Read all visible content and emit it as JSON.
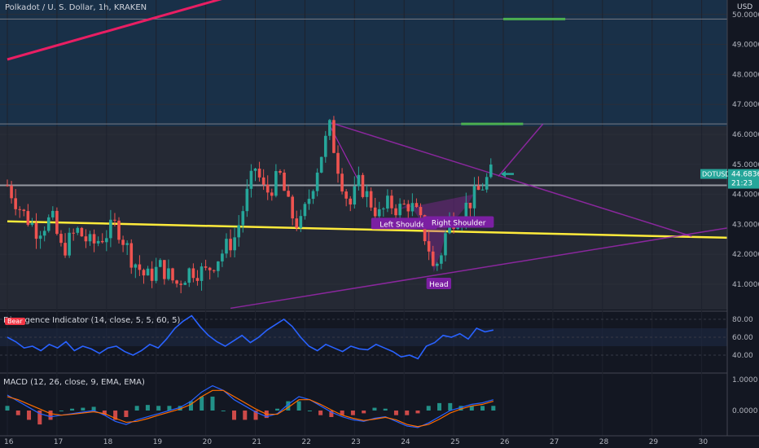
{
  "header": {
    "symbol_title": "Polkadot / U. S. Dollar, 1h, KRAKEN",
    "currency": "USD"
  },
  "price_tag": {
    "ticker": "DOTUSD",
    "price": "44.6836",
    "countdown": "21:23"
  },
  "rsi": {
    "title": "Divergence Indicator (14, close, 5, 5, 60, 5)",
    "badge": "Bear"
  },
  "macd": {
    "title": "MACD (12, 26, close, 9, EMA, EMA)"
  },
  "colors": {
    "background": "#131722",
    "up": "#26a69a",
    "down": "#ef5350",
    "support_line": "#ffeb3b",
    "trend_line": "#e91e63",
    "wedge": "#9c27b0",
    "target": "#4caf50",
    "rsi_line": "#2962ff",
    "arrow": "#26a69a"
  },
  "chart_data": [
    {
      "type": "candlestick",
      "title": "Polkadot / U. S. Dollar, 1h, KRAKEN",
      "ylabel": "USD",
      "ylim": [
        40.2,
        51.4
      ],
      "y_ticks": [
        "50.0000",
        "49.0000",
        "48.0000",
        "47.0000",
        "46.0000",
        "45.0000",
        "44.0000",
        "43.0000",
        "42.0000",
        "41.0000"
      ],
      "x_ticks": [
        "16",
        "17",
        "18",
        "19",
        "20",
        "21",
        "22",
        "23",
        "24",
        "25",
        "26",
        "27",
        "28",
        "29",
        "30"
      ],
      "price_path": [
        [
          16.0,
          44.3
        ],
        [
          16.3,
          43.4
        ],
        [
          16.6,
          42.8
        ],
        [
          16.9,
          43.2
        ],
        [
          17.1,
          42.1
        ],
        [
          17.4,
          42.8
        ],
        [
          17.7,
          42.3
        ],
        [
          18.0,
          42.7
        ],
        [
          18.2,
          43.0
        ],
        [
          18.5,
          41.9
        ],
        [
          18.8,
          41.2
        ],
        [
          19.1,
          41.6
        ],
        [
          19.4,
          41.0
        ],
        [
          19.7,
          41.5
        ],
        [
          20.0,
          41.4
        ],
        [
          20.3,
          42.0
        ],
        [
          20.6,
          42.6
        ],
        [
          20.8,
          43.8
        ],
        [
          21.0,
          44.9
        ],
        [
          21.2,
          44.0
        ],
        [
          21.5,
          44.6
        ],
        [
          21.7,
          43.4
        ],
        [
          21.9,
          42.9
        ],
        [
          22.1,
          44.0
        ],
        [
          22.3,
          45.2
        ],
        [
          22.5,
          46.2
        ],
        [
          22.7,
          44.7
        ],
        [
          22.9,
          43.6
        ],
        [
          23.1,
          44.4
        ],
        [
          23.3,
          43.8
        ],
        [
          23.5,
          43.3
        ],
        [
          23.7,
          43.7
        ],
        [
          23.9,
          43.5
        ],
        [
          24.1,
          43.7
        ],
        [
          24.3,
          43.2
        ],
        [
          24.5,
          42.2
        ],
        [
          24.6,
          41.4
        ],
        [
          24.75,
          42.1
        ],
        [
          24.9,
          43.1
        ],
        [
          25.1,
          43.3
        ],
        [
          25.3,
          43.7
        ],
        [
          25.5,
          44.1
        ],
        [
          25.75,
          44.68
        ]
      ],
      "annotations": [
        {
          "text": "Left Shoulder",
          "x": 24.0,
          "y": 43.0
        },
        {
          "text": "Head",
          "x": 24.7,
          "y": 41.0
        },
        {
          "text": "Right Shoulder",
          "x": 25.1,
          "y": 43.05
        }
      ],
      "levels": [
        {
          "name": "resistance",
          "y": 46.35
        },
        {
          "name": "pivot",
          "y": 44.3
        },
        {
          "name": "top",
          "y": 49.85
        }
      ],
      "targets": [
        {
          "x1": 25.15,
          "x2": 26.4,
          "y": 46.35
        },
        {
          "x1": 26.0,
          "x2": 27.25,
          "y": 49.85
        }
      ],
      "trendlines": [
        {
          "name": "support",
          "p1": [
            16.0,
            43.1
          ],
          "p2": [
            30.6,
            42.55
          ]
        },
        {
          "name": "upper-wedge",
          "p1": [
            22.5,
            46.4
          ],
          "p2": [
            29.8,
            42.6
          ]
        },
        {
          "name": "lower-wedge",
          "p1": [
            20.5,
            40.2
          ],
          "p2": [
            30.6,
            42.9
          ]
        },
        {
          "name": "long-trend",
          "p1": [
            16.0,
            48.5
          ],
          "p2": [
            22.2,
            51.4
          ]
        },
        {
          "name": "projection",
          "p1": [
            25.9,
            44.6
          ],
          "p2": [
            26.8,
            46.35
          ]
        }
      ]
    },
    {
      "type": "line",
      "title": "Divergence Indicator (14, close, 5, 5, 60, 5)",
      "ylim": [
        30,
        90
      ],
      "y_ticks": [
        "80.00",
        "60.00",
        "40.00"
      ],
      "series": [
        {
          "values": [
            60,
            55,
            48,
            50,
            45,
            52,
            48,
            55,
            45,
            50,
            47,
            42,
            48,
            50,
            44,
            40,
            45,
            52,
            48,
            58,
            70,
            78,
            84,
            72,
            62,
            55,
            50,
            56,
            62,
            54,
            60,
            68,
            74,
            80,
            72,
            60,
            50,
            45,
            52,
            48,
            44,
            50,
            47,
            46,
            52,
            48,
            44,
            38,
            40,
            36,
            50,
            54,
            62,
            60,
            64,
            58,
            70,
            66,
            68
          ]
        }
      ]
    },
    {
      "type": "bar",
      "title": "MACD (12, 26, close, 9, EMA, EMA)",
      "ylim": [
        -0.8,
        1.1
      ],
      "y_ticks": [
        "1.0000",
        "0.0000"
      ],
      "series": [
        {
          "name": "macd",
          "values": [
            0.5,
            0.3,
            0.1,
            -0.1,
            -0.2,
            -0.15,
            -0.1,
            -0.05,
            0.0,
            -0.15,
            -0.35,
            -0.45,
            -0.3,
            -0.2,
            -0.1,
            0.0,
            0.1,
            0.3,
            0.6,
            0.8,
            0.65,
            0.35,
            0.15,
            -0.05,
            -0.2,
            -0.1,
            0.2,
            0.45,
            0.35,
            0.15,
            -0.05,
            -0.2,
            -0.3,
            -0.35,
            -0.25,
            -0.2,
            -0.35,
            -0.5,
            -0.55,
            -0.4,
            -0.2,
            0.0,
            0.1,
            0.2,
            0.25,
            0.35
          ]
        },
        {
          "name": "signal",
          "values": [
            0.45,
            0.35,
            0.2,
            0.05,
            -0.1,
            -0.15,
            -0.12,
            -0.08,
            -0.04,
            -0.1,
            -0.25,
            -0.38,
            -0.35,
            -0.26,
            -0.15,
            -0.05,
            0.05,
            0.2,
            0.45,
            0.65,
            0.65,
            0.45,
            0.25,
            0.05,
            -0.12,
            -0.12,
            0.1,
            0.35,
            0.35,
            0.2,
            0.02,
            -0.15,
            -0.25,
            -0.32,
            -0.28,
            -0.22,
            -0.3,
            -0.45,
            -0.52,
            -0.45,
            -0.28,
            -0.08,
            0.05,
            0.15,
            0.2,
            0.3
          ]
        },
        {
          "name": "histogram",
          "values": [
            0.05,
            -0.05,
            -0.1,
            -0.15,
            -0.1,
            0.0,
            0.02,
            0.03,
            0.04,
            -0.05,
            -0.1,
            -0.07,
            0.05,
            0.06,
            0.05,
            0.05,
            0.05,
            0.1,
            0.15,
            0.15,
            0.0,
            -0.1,
            -0.1,
            -0.1,
            -0.08,
            0.02,
            0.1,
            0.1,
            0.0,
            -0.05,
            -0.07,
            -0.05,
            -0.05,
            -0.03,
            0.03,
            0.02,
            -0.05,
            -0.05,
            -0.03,
            0.05,
            0.08,
            0.08,
            0.05,
            0.05,
            0.05,
            0.05
          ]
        }
      ]
    }
  ]
}
